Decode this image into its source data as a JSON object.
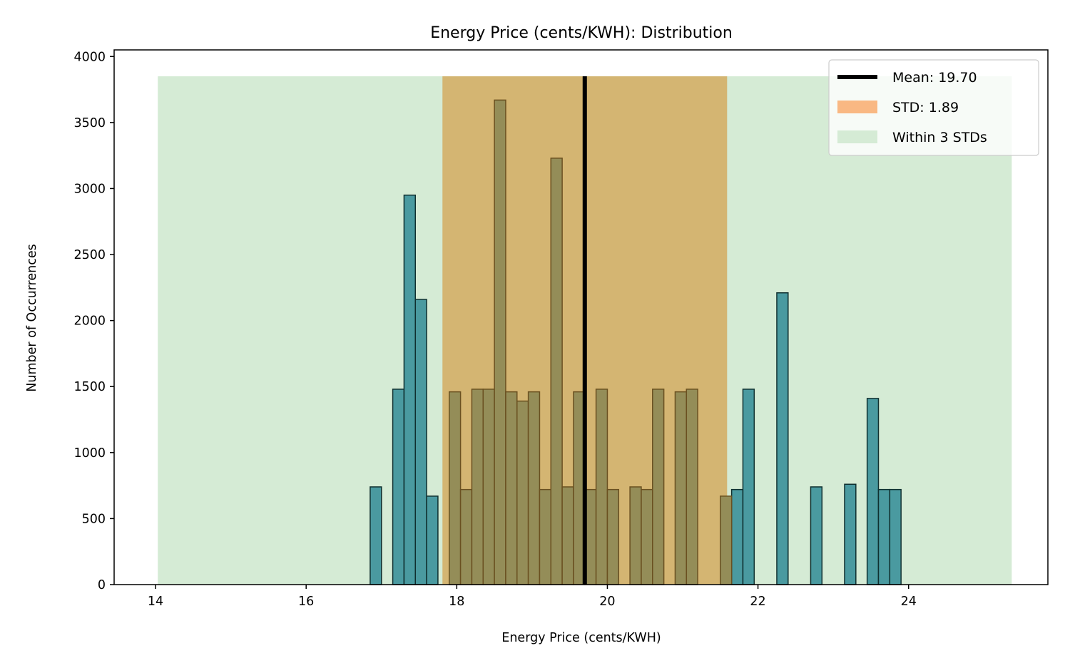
{
  "chart_data": {
    "type": "bar",
    "title": "Energy Price (cents/KWH): Distribution",
    "xlabel": "Energy Price (cents/KWH)",
    "ylabel": "Number of Occurrences",
    "xlim": [
      13.45,
      25.85
    ],
    "ylim": [
      0,
      4050
    ],
    "xticks": [
      14,
      16,
      18,
      20,
      22,
      24
    ],
    "yticks": [
      0,
      500,
      1000,
      1500,
      2000,
      2500,
      3000,
      3500,
      4000
    ],
    "grid": false,
    "legend_position": "top-right",
    "bin_width": 0.15,
    "bins": [
      {
        "start": 16.85,
        "count": 740
      },
      {
        "start": 17.15,
        "count": 1480
      },
      {
        "start": 17.3,
        "count": 2950
      },
      {
        "start": 17.45,
        "count": 2160
      },
      {
        "start": 17.6,
        "count": 670
      },
      {
        "start": 17.9,
        "count": 1460
      },
      {
        "start": 18.05,
        "count": 720
      },
      {
        "start": 18.2,
        "count": 1480
      },
      {
        "start": 18.35,
        "count": 1480
      },
      {
        "start": 18.5,
        "count": 3670
      },
      {
        "start": 18.65,
        "count": 1460
      },
      {
        "start": 18.8,
        "count": 1390
      },
      {
        "start": 18.95,
        "count": 1460
      },
      {
        "start": 19.1,
        "count": 720
      },
      {
        "start": 19.25,
        "count": 3230
      },
      {
        "start": 19.4,
        "count": 740
      },
      {
        "start": 19.55,
        "count": 1460
      },
      {
        "start": 19.7,
        "count": 720
      },
      {
        "start": 19.85,
        "count": 1480
      },
      {
        "start": 20.0,
        "count": 720
      },
      {
        "start": 20.3,
        "count": 740
      },
      {
        "start": 20.45,
        "count": 720
      },
      {
        "start": 20.6,
        "count": 1480
      },
      {
        "start": 20.9,
        "count": 1460
      },
      {
        "start": 21.05,
        "count": 1480
      },
      {
        "start": 21.5,
        "count": 670
      },
      {
        "start": 21.65,
        "count": 720
      },
      {
        "start": 21.8,
        "count": 1480
      },
      {
        "start": 22.25,
        "count": 2210
      },
      {
        "start": 22.7,
        "count": 740
      },
      {
        "start": 23.15,
        "count": 760
      },
      {
        "start": 23.45,
        "count": 1410
      },
      {
        "start": 23.6,
        "count": 720
      },
      {
        "start": 23.75,
        "count": 720
      }
    ],
    "mean": 19.7,
    "std": 1.89,
    "std_band": [
      17.81,
      21.59
    ],
    "three_std_band": [
      14.03,
      25.37
    ],
    "band_top": 3850,
    "legend": [
      {
        "label": "Mean: 19.70",
        "kind": "line",
        "color": "#000000"
      },
      {
        "label": "STD: 1.89",
        "kind": "patch",
        "color": "#f9b883"
      },
      {
        "label": "Within 3 STDs",
        "kind": "patch",
        "color": "#d5ebd5"
      }
    ],
    "colors": {
      "bar_fill": "#4a9aa0",
      "bar_edge": "#0f2f2f",
      "std_band": "#d4b572",
      "three_std_band": "#d5ebd5",
      "bar_in_std": "#948d58",
      "bar_edge_in_std": "#6a5020",
      "mean_line": "#000000"
    }
  }
}
